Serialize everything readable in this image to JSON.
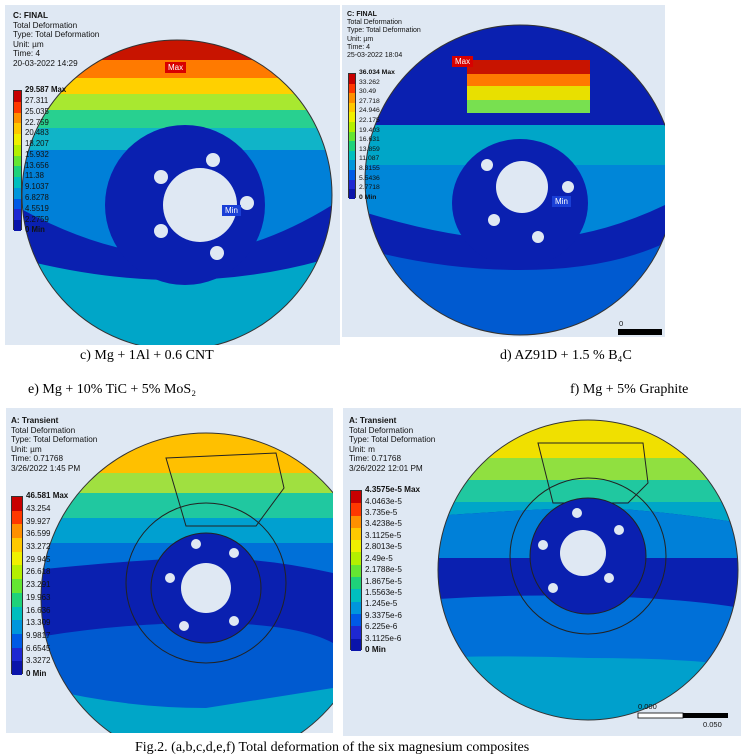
{
  "panels": [
    {
      "id": "c",
      "info": [
        "C: FINAL",
        "Total Deformation",
        "Type: Total Deformation",
        "Unit: µm",
        "Time: 4",
        "20-03-2022 14:29"
      ],
      "legend": [
        "29.587 Max",
        "27.311",
        "25.035",
        "22.759",
        "20.483",
        "18.207",
        "15.932",
        "13.656",
        "11.38",
        "9.1037",
        "6.8278",
        "4.5519",
        "2.2759",
        "0 Min"
      ],
      "max_tag": "Max",
      "min_tag": "Min"
    },
    {
      "id": "d",
      "info": [
        "C: FINAL",
        "Total Deformation",
        "Type: Total Deformation",
        "Unit: µm",
        "Time: 4",
        "25-03-2022 18:04"
      ],
      "legend": [
        "36.034 Max",
        "33.262",
        "30.49",
        "27.718",
        "24.946",
        "22.175",
        "19.403",
        "16.631",
        "13.859",
        "11.087",
        "8.3155",
        "5.5436",
        "2.7718",
        "0 Min"
      ],
      "max_tag": "Max",
      "min_tag": "Min",
      "scale": [
        "0"
      ]
    },
    {
      "id": "e",
      "info": [
        "A: Transient",
        "Total Deformation",
        "Type: Total Deformation",
        "Unit: µm",
        "Time: 0.71768",
        "3/26/2022 1:45 PM"
      ],
      "legend": [
        "46.581 Max",
        "43.254",
        "39.927",
        "36.599",
        "33.272",
        "29.945",
        "26.618",
        "23.291",
        "19.963",
        "16.636",
        "13.309",
        "9.9817",
        "6.6545",
        "3.3272",
        "0 Min"
      ]
    },
    {
      "id": "f",
      "info": [
        "A: Transient",
        "Total Deformation",
        "Type: Total Deformation",
        "Unit: m",
        "Time: 0.71768",
        "3/26/2022 12:01 PM"
      ],
      "legend": [
        "4.3575e-5 Max",
        "4.0463e-5",
        "3.735e-5",
        "3.4238e-5",
        "3.1125e-5",
        "2.8013e-5",
        "2.49e-5",
        "2.1788e-5",
        "1.8675e-5",
        "1.5563e-5",
        "1.245e-5",
        "9.3375e-6",
        "6.225e-6",
        "3.1125e-6",
        "0 Min"
      ],
      "scale": [
        "0.000",
        "0.050"
      ]
    }
  ],
  "captions": {
    "c": "c)  Mg + 1Al + 0.6 CNT",
    "d": "d) AZ91D + 1.5 % B₄C",
    "e": "e) Mg + 10% TiC + 5% MoS₂",
    "f": "f) Mg + 5% Graphite",
    "figure": "Fig.2. (a,b,c,d,e,f) Total deformation of the six magnesium composites"
  },
  "colors": {
    "scale": [
      "#c80000",
      "#ff3800",
      "#ff9000",
      "#ffc800",
      "#f0f000",
      "#b4f000",
      "#64e632",
      "#1ed27a",
      "#00bebe",
      "#0096dc",
      "#005ae6",
      "#1e28d2",
      "#0a14aa"
    ]
  }
}
